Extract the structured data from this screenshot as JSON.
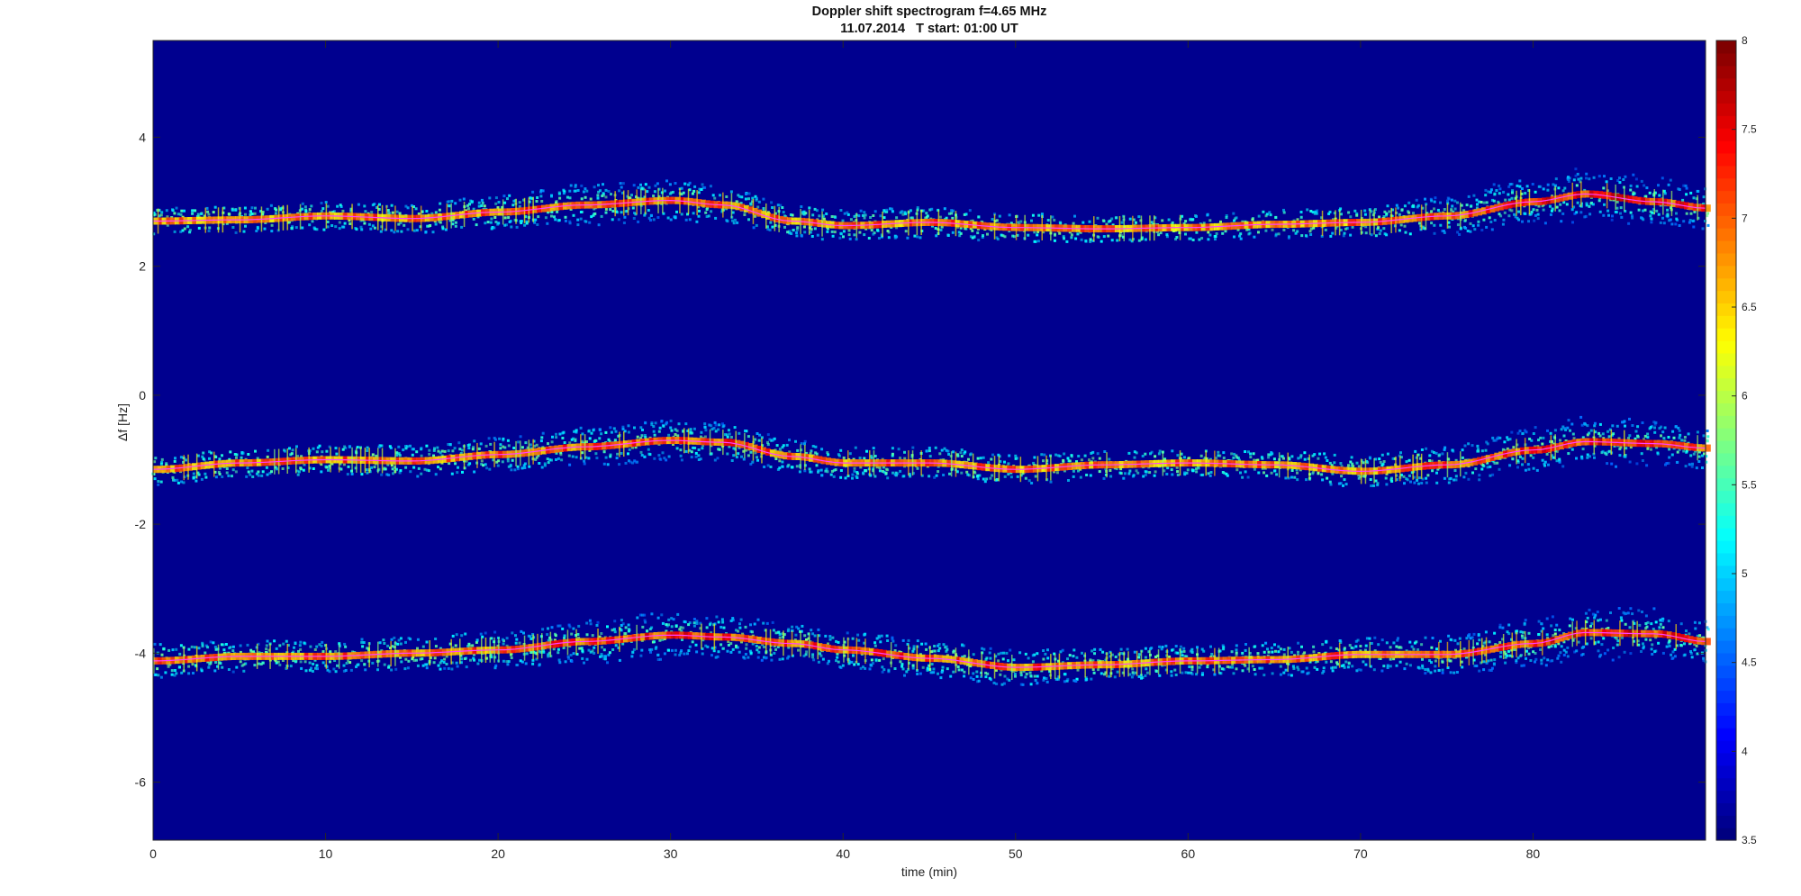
{
  "chart_data": {
    "type": "heatmap",
    "title": "Doppler shift spectrogram f=4.65 MHz",
    "subtitle": "11.07.2014   T start: 01:00 UT",
    "xlabel": "time (min)",
    "ylabel": "Δf [Hz]",
    "xlim": [
      0,
      90
    ],
    "ylim": [
      -6.9,
      5.5
    ],
    "xticks": [
      0,
      10,
      20,
      30,
      40,
      50,
      60,
      70,
      80
    ],
    "yticks": [
      4,
      2,
      0,
      -2,
      -4,
      -6
    ],
    "colorbar": {
      "colormap": "jet",
      "limits": [
        3.5,
        8
      ],
      "ticks": [
        "8",
        "7.5",
        "7",
        "6.5",
        "6",
        "5.5",
        "5",
        "4.5",
        "4",
        "3.5"
      ]
    },
    "background_color": "#00008f",
    "trace_color": "#ff40ff",
    "series": [
      {
        "x": [
          0,
          5,
          10,
          15,
          20,
          25,
          30,
          33,
          37,
          40,
          45,
          50,
          55,
          60,
          65,
          70,
          75,
          80,
          83,
          87,
          90
        ],
        "y": [
          2.7,
          2.72,
          2.78,
          2.74,
          2.84,
          2.95,
          3.02,
          2.95,
          2.7,
          2.63,
          2.68,
          2.6,
          2.58,
          2.6,
          2.65,
          2.68,
          2.78,
          3.0,
          3.12,
          3.0,
          2.9
        ],
        "spread": [
          0.08,
          0.08,
          0.1,
          0.1,
          0.14,
          0.2,
          0.2,
          0.16,
          0.12,
          0.12,
          0.12,
          0.1,
          0.08,
          0.08,
          0.1,
          0.1,
          0.18,
          0.3,
          0.32,
          0.26,
          0.2
        ]
      },
      {
        "x": [
          0,
          5,
          10,
          15,
          20,
          25,
          30,
          33,
          37,
          40,
          45,
          50,
          55,
          60,
          65,
          70,
          75,
          80,
          83,
          87,
          90
        ],
        "y": [
          -1.15,
          -1.05,
          -1.0,
          -1.02,
          -0.92,
          -0.8,
          -0.7,
          -0.73,
          -0.95,
          -1.05,
          -1.05,
          -1.15,
          -1.08,
          -1.05,
          -1.08,
          -1.18,
          -1.08,
          -0.85,
          -0.72,
          -0.75,
          -0.82
        ],
        "spread": [
          0.12,
          0.1,
          0.1,
          0.12,
          0.14,
          0.18,
          0.2,
          0.18,
          0.14,
          0.12,
          0.12,
          0.1,
          0.1,
          0.08,
          0.1,
          0.12,
          0.16,
          0.24,
          0.28,
          0.24,
          0.2
        ]
      },
      {
        "x": [
          0,
          5,
          10,
          15,
          20,
          25,
          30,
          33,
          37,
          40,
          45,
          50,
          55,
          60,
          65,
          70,
          75,
          80,
          83,
          87,
          90
        ],
        "y": [
          -4.12,
          -4.05,
          -4.05,
          -4.0,
          -3.95,
          -3.82,
          -3.72,
          -3.75,
          -3.85,
          -3.95,
          -4.08,
          -4.22,
          -4.18,
          -4.12,
          -4.1,
          -4.02,
          -4.02,
          -3.85,
          -3.68,
          -3.7,
          -3.82
        ],
        "spread": [
          0.14,
          0.12,
          0.12,
          0.14,
          0.16,
          0.22,
          0.26,
          0.22,
          0.18,
          0.16,
          0.18,
          0.16,
          0.12,
          0.12,
          0.14,
          0.14,
          0.18,
          0.26,
          0.32,
          0.28,
          0.22
        ]
      }
    ]
  }
}
